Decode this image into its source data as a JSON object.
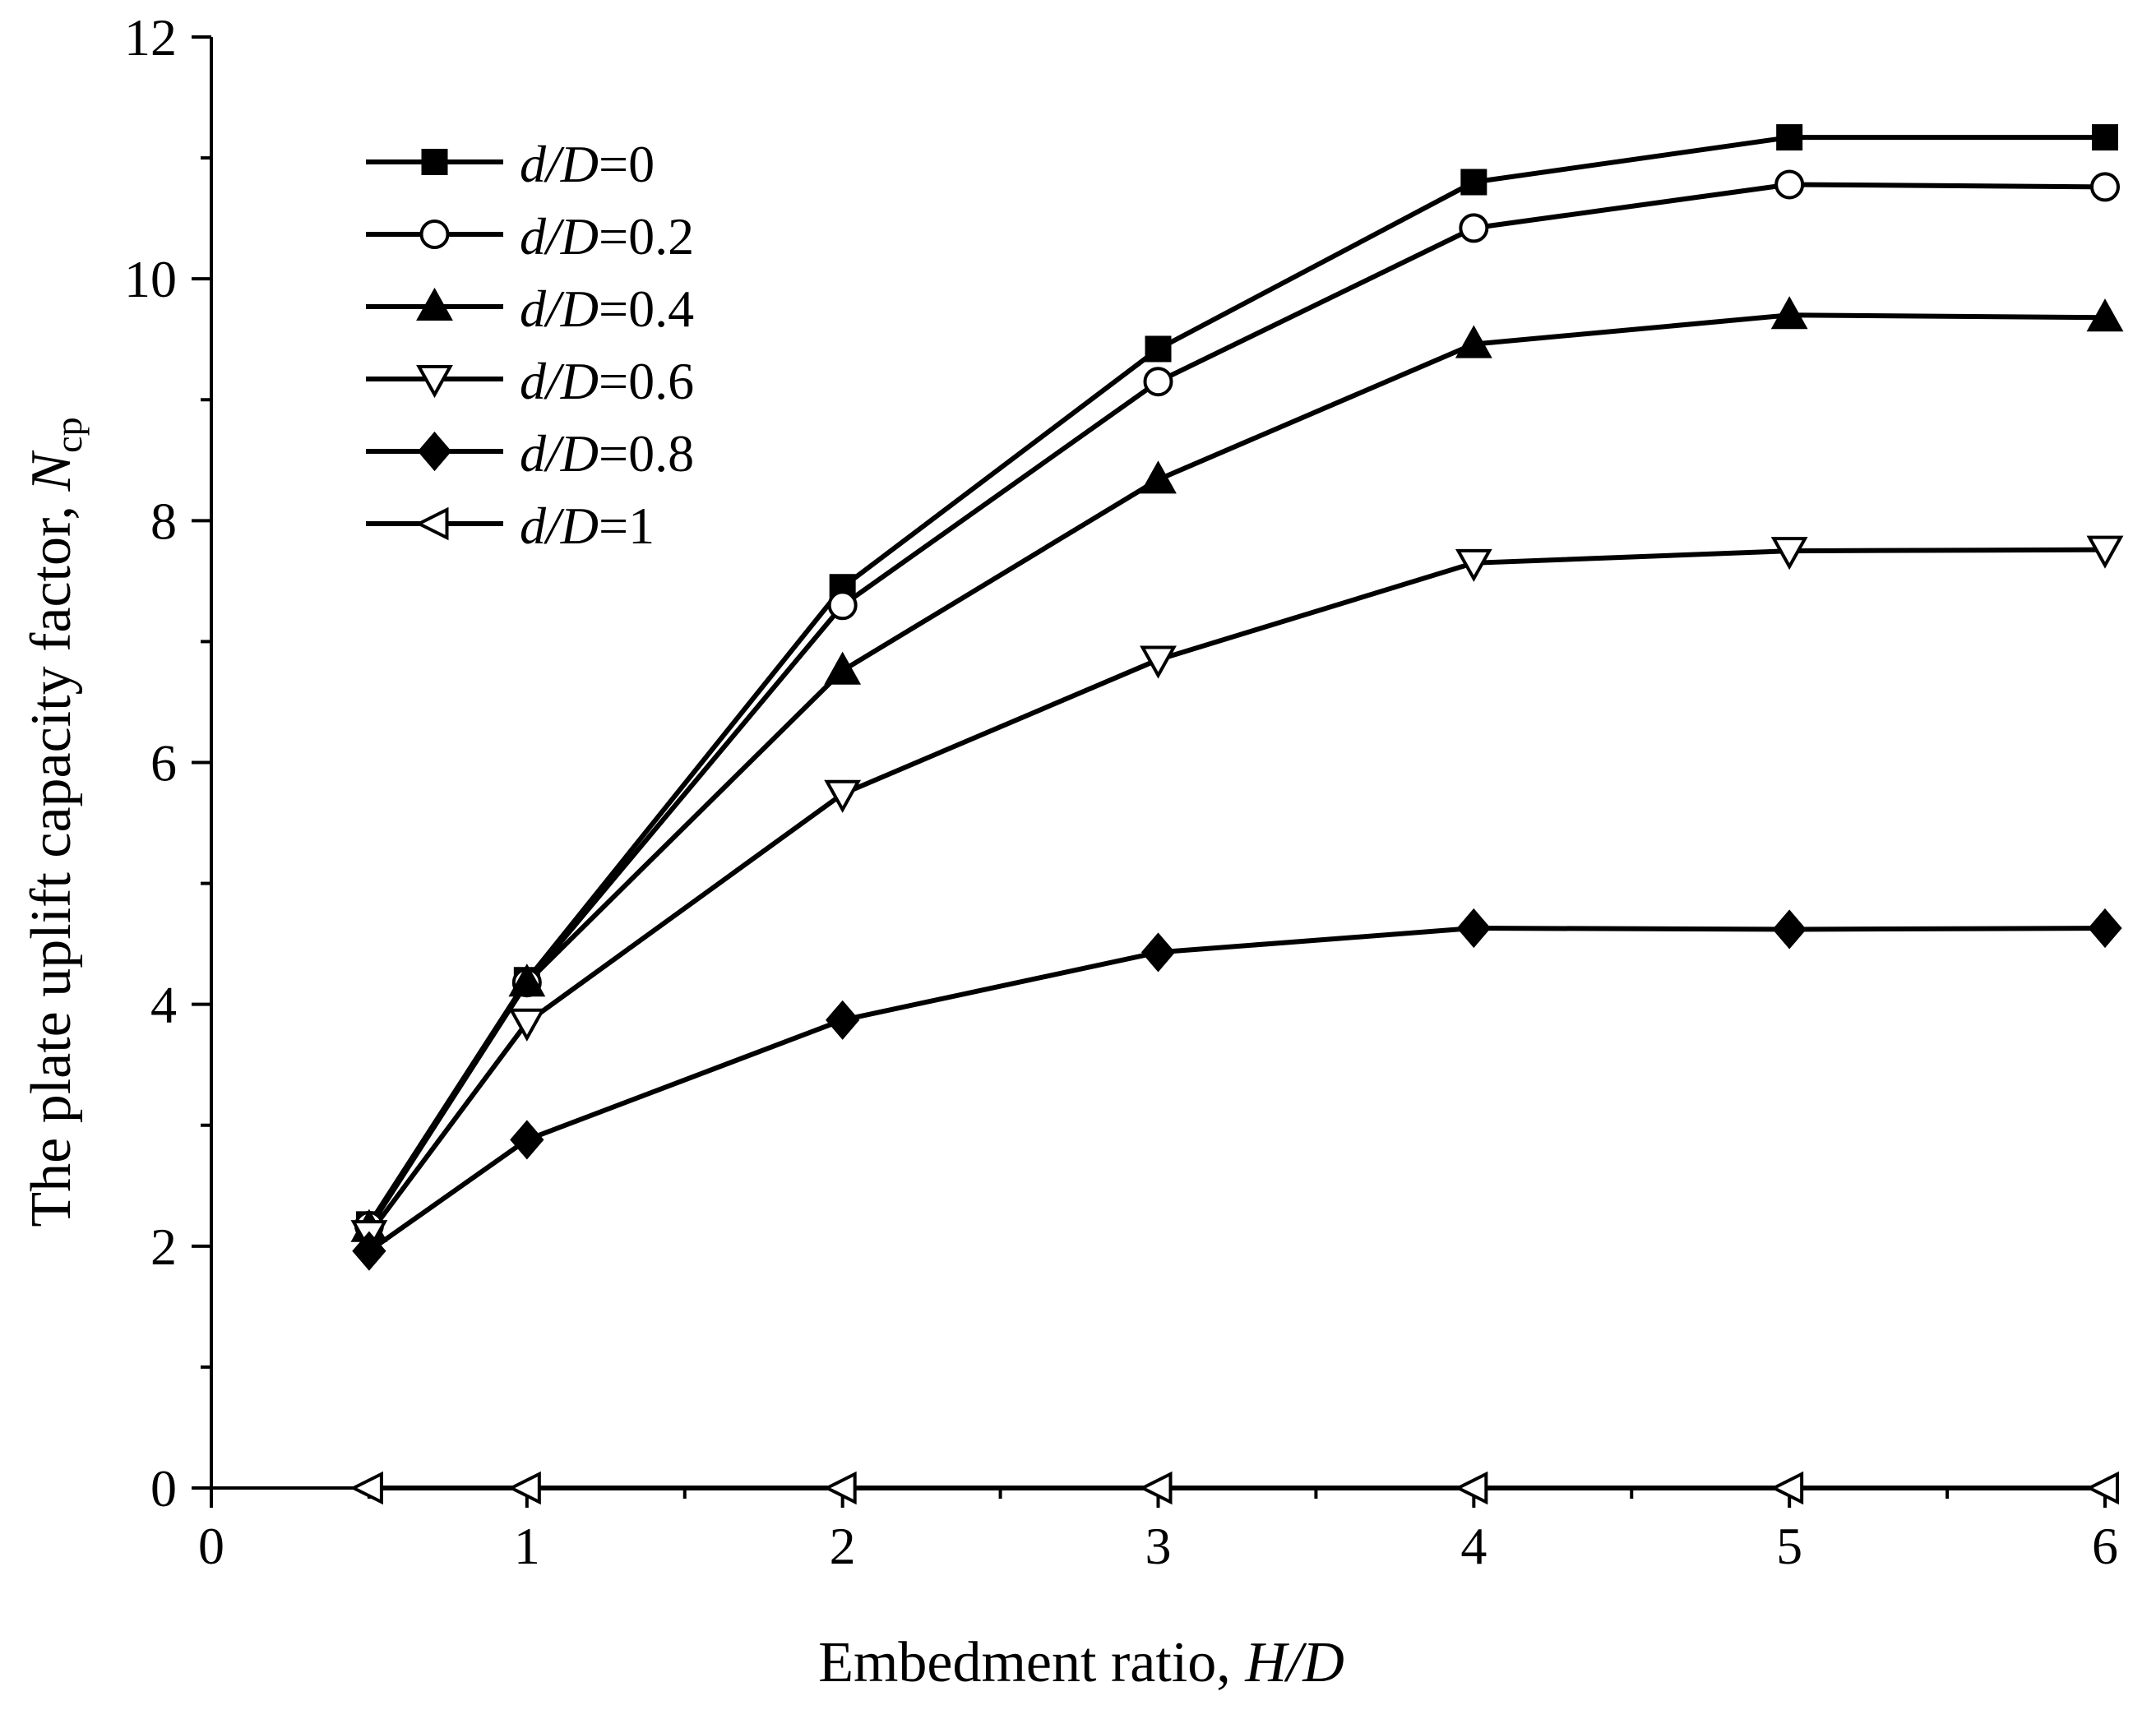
{
  "chart_data": {
    "type": "line",
    "xlabel_prefix": "Embedment ratio, ",
    "xlabel_italic": "H/D",
    "ylabel_prefix": "The plate uplift capacity factor, ",
    "ylabel_symbol": "N",
    "ylabel_subscript": "cp",
    "xlim": [
      0,
      6
    ],
    "ylim": [
      0,
      12
    ],
    "xticks": [
      "0",
      "1",
      "2",
      "3",
      "4",
      "5",
      "6"
    ],
    "yticks": [
      "0",
      "2",
      "4",
      "6",
      "8",
      "10",
      "12"
    ],
    "x": [
      0.5,
      1,
      2,
      3,
      4,
      5,
      6
    ],
    "legend_position": "top-left",
    "series": [
      {
        "label_italic": "d/D",
        "label_value": "=0",
        "marker": "square-filled",
        "values": [
          2.18,
          4.2,
          7.45,
          9.42,
          10.8,
          11.17,
          11.17
        ]
      },
      {
        "label_italic": "d/D",
        "label_value": "=0.2",
        "marker": "circle-open",
        "values": [
          2.17,
          4.18,
          7.3,
          9.15,
          10.42,
          10.78,
          10.76
        ]
      },
      {
        "label_italic": "d/D",
        "label_value": "=0.4",
        "marker": "triangle-up-filled",
        "values": [
          2.15,
          4.18,
          6.76,
          8.34,
          9.46,
          9.7,
          9.68
        ]
      },
      {
        "label_italic": "d/D",
        "label_value": "=0.6",
        "marker": "triangle-down-open",
        "values": [
          2.1,
          3.85,
          5.74,
          6.85,
          7.65,
          7.75,
          7.76
        ]
      },
      {
        "label_italic": "d/D",
        "label_value": "=0.8",
        "marker": "diamond-filled",
        "values": [
          1.96,
          2.88,
          3.87,
          4.43,
          4.63,
          4.62,
          4.63
        ]
      },
      {
        "label_italic": "d/D",
        "label_value": "=1",
        "marker": "triangle-left-open",
        "values": [
          0,
          0,
          0,
          0,
          0,
          0,
          0
        ]
      }
    ]
  }
}
